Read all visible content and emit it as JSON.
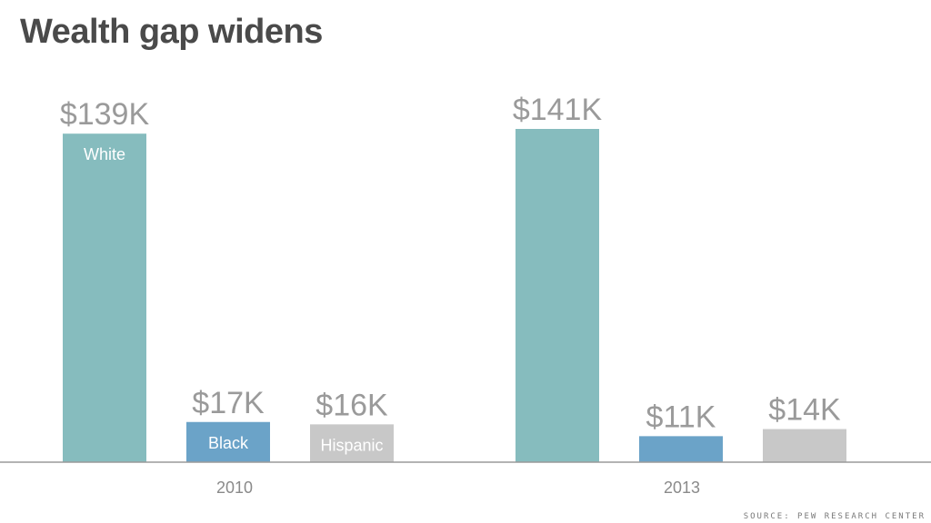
{
  "chart_data": {
    "type": "bar",
    "title": "Wealth gap widens",
    "categories": [
      "2010",
      "2013"
    ],
    "series": [
      {
        "name": "White",
        "values": [
          139,
          141
        ],
        "labels": [
          "$139K",
          "$141K"
        ],
        "color": "#86bcbe"
      },
      {
        "name": "Black",
        "values": [
          17,
          11
        ],
        "labels": [
          "$17K",
          "$11K"
        ],
        "color": "#6ba3c8"
      },
      {
        "name": "Hispanic",
        "values": [
          16,
          14
        ],
        "labels": [
          "$16K",
          "$14K"
        ],
        "color": "#c8c8c8"
      }
    ],
    "ylim": [
      0,
      141
    ],
    "grid": false,
    "legend": "none",
    "source": "SOURCE: PEW RESEARCH CENTER"
  }
}
